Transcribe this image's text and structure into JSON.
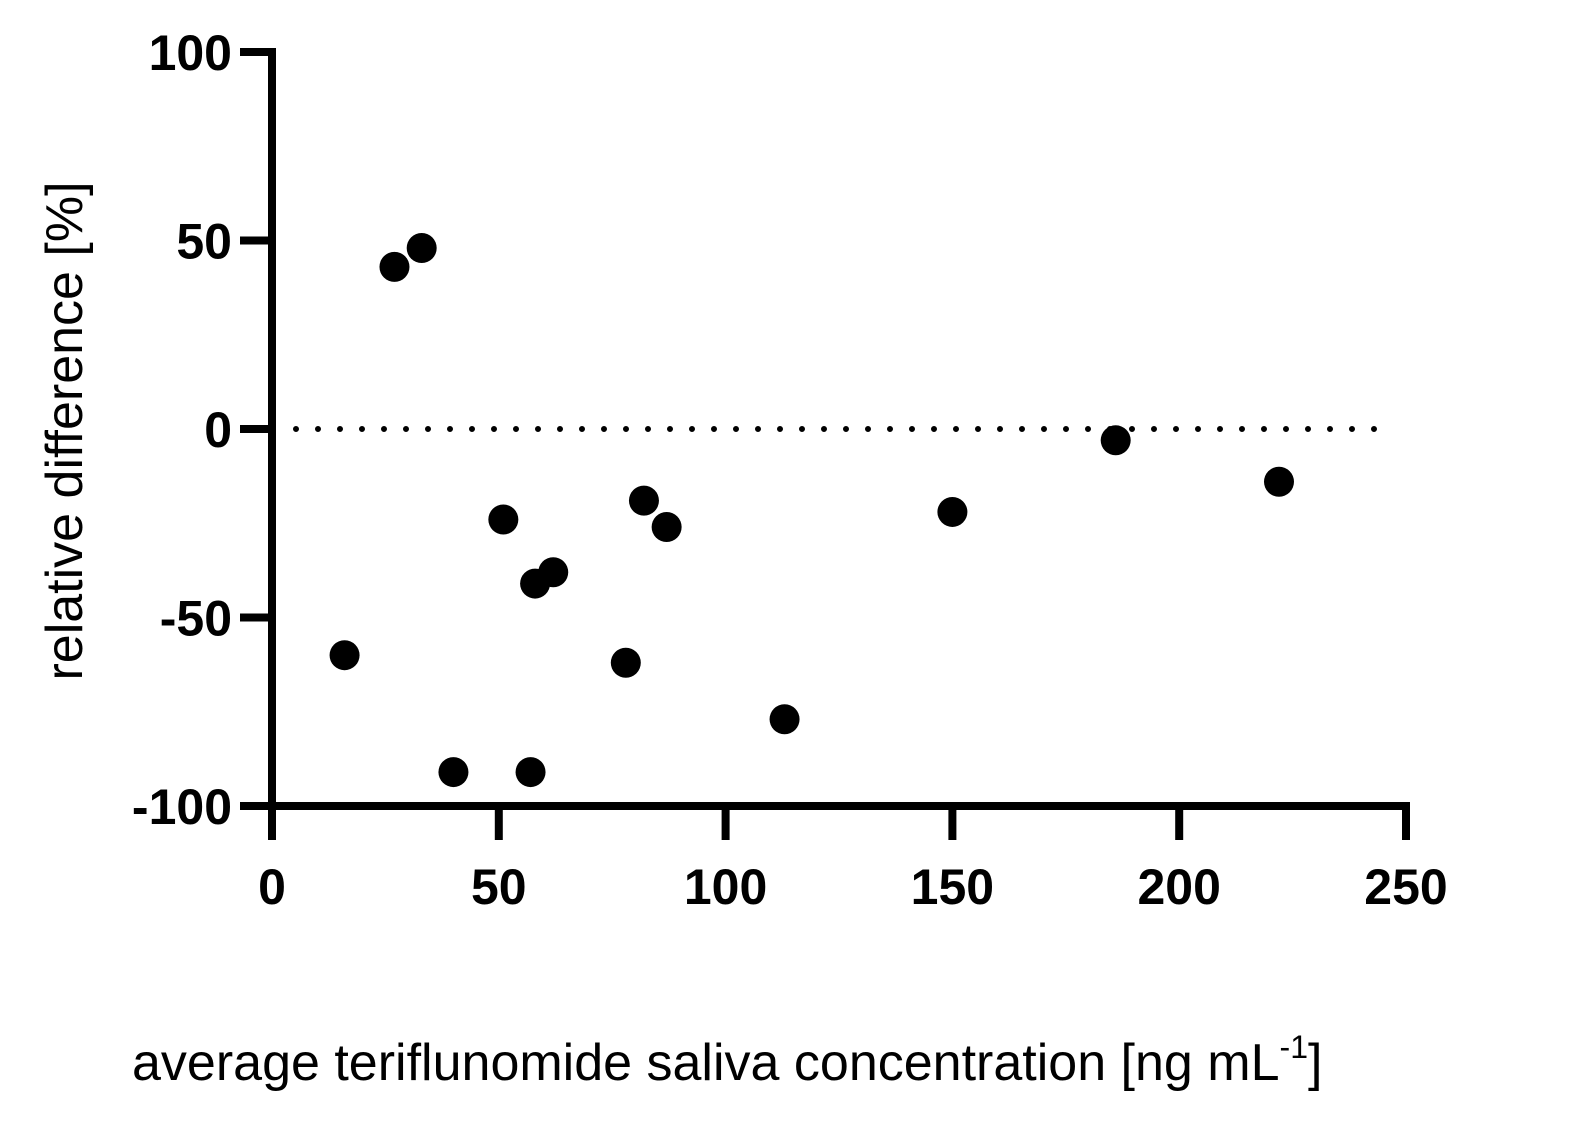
{
  "chart_data": {
    "type": "scatter",
    "xlabel": "average teriflunomide saliva concentration [ng mL",
    "xlabel_superscript": "-1",
    "xlabel_suffix": "]",
    "ylabel": "relative difference [%]",
    "xlim": [
      0,
      250
    ],
    "ylim": [
      -100,
      100
    ],
    "x_ticks": [
      "0",
      "50",
      "100",
      "150",
      "200",
      "250"
    ],
    "y_ticks": [
      "100",
      "50",
      "0",
      "-50",
      "-100"
    ],
    "x_tick_values": [
      0,
      50,
      100,
      150,
      200,
      250
    ],
    "y_tick_values": [
      100,
      50,
      0,
      -50,
      -100
    ],
    "reference_line": {
      "y": 0,
      "style": "dotted"
    },
    "grid": false,
    "marker_color": "#000000",
    "series": [
      {
        "points": [
          {
            "x": 16,
            "y": -60
          },
          {
            "x": 27,
            "y": 43
          },
          {
            "x": 33,
            "y": 48
          },
          {
            "x": 40,
            "y": -91
          },
          {
            "x": 51,
            "y": -24
          },
          {
            "x": 57,
            "y": -91
          },
          {
            "x": 58,
            "y": -41
          },
          {
            "x": 62,
            "y": -38
          },
          {
            "x": 78,
            "y": -62
          },
          {
            "x": 82,
            "y": -19
          },
          {
            "x": 87,
            "y": -26
          },
          {
            "x": 113,
            "y": -77
          },
          {
            "x": 150,
            "y": -22
          },
          {
            "x": 186,
            "y": -3
          },
          {
            "x": 222,
            "y": -14
          }
        ]
      }
    ]
  }
}
